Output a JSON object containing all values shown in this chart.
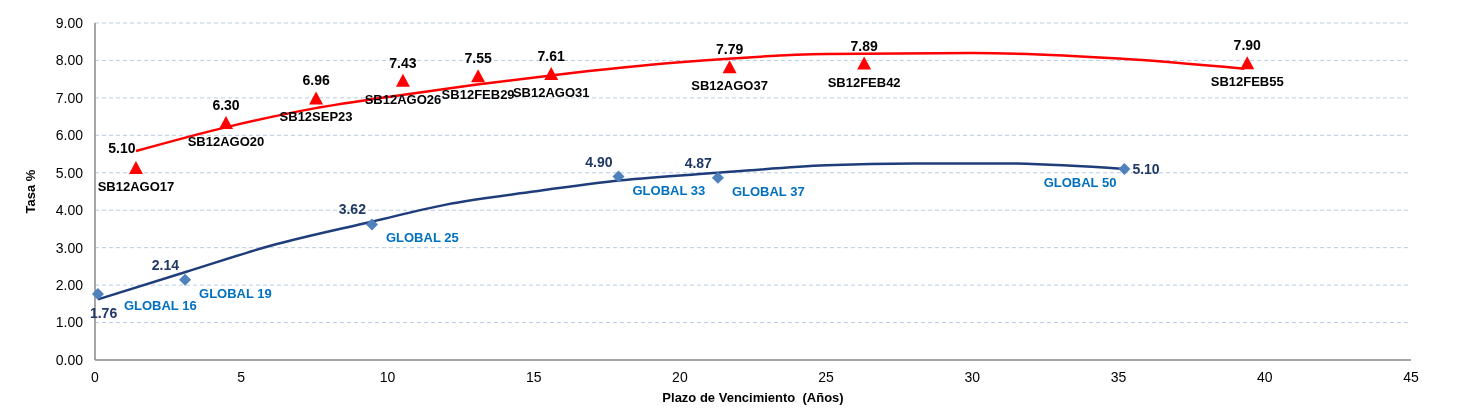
{
  "chart_data": {
    "type": "scatter",
    "xlabel": "Plazo de Vencimiento  (Años)",
    "ylabel": "Tasa %",
    "xlim": [
      0,
      45
    ],
    "xticks": [
      0,
      5,
      10,
      15,
      20,
      25,
      30,
      35,
      40,
      45
    ],
    "ylim": [
      0,
      9
    ],
    "yticks": [
      {
        "value": 0,
        "label": "0.00"
      },
      {
        "value": 1,
        "label": "1.00"
      },
      {
        "value": 2,
        "label": "2.00"
      },
      {
        "value": 3,
        "label": "3.00"
      },
      {
        "value": 4,
        "label": "4.00"
      },
      {
        "value": 5,
        "label": "5.00"
      },
      {
        "value": 6,
        "label": "6.00"
      },
      {
        "value": 7,
        "label": "7.00"
      },
      {
        "value": 8,
        "label": "8.00"
      },
      {
        "value": 9,
        "label": "9.00"
      }
    ],
    "grid": "y",
    "series": [
      {
        "type": "line",
        "color": "#ff0000",
        "marker": "none",
        "x": [
          1.4,
          4.5,
          7.5,
          10.5,
          13,
          15.6,
          20,
          25,
          30,
          35,
          39.3
        ],
        "values": [
          5.58,
          6.22,
          6.72,
          7.08,
          7.35,
          7.6,
          7.95,
          8.17,
          8.2,
          8.05,
          7.78
        ]
      },
      {
        "type": "line",
        "color": "#1f3d7a",
        "marker": "none",
        "x": [
          0.1,
          3.1,
          6,
          9.5,
          12,
          15,
          18,
          21.3,
          25,
          28,
          31,
          35.2
        ],
        "values": [
          1.62,
          2.35,
          3.05,
          3.7,
          4.15,
          4.5,
          4.8,
          5.0,
          5.2,
          5.25,
          5.25,
          5.1
        ]
      },
      {
        "color": "#ff0000",
        "marker": "triangle",
        "x": [
          1.4,
          4.48,
          7.56,
          10.53,
          13.1,
          15.6,
          21.7,
          26.3,
          39.4
        ],
        "values": [
          5.1,
          6.3,
          6.96,
          7.43,
          7.55,
          7.61,
          7.79,
          7.89,
          7.9
        ],
        "value_labels": [
          "5.10",
          "6.30",
          "6.96",
          "7.43",
          "7.55",
          "7.61",
          "7.79",
          "7.89",
          "7.90"
        ]
      },
      {
        "color": "#4f81bd",
        "marker": "diamond",
        "x": [
          0.1,
          3.08,
          9.47,
          17.9,
          21.3,
          35.2
        ],
        "values": [
          1.76,
          2.14,
          3.62,
          4.9,
          4.87,
          5.1
        ],
        "value_labels": [
          "1.76",
          "2.14",
          "3.62",
          "4.90",
          "4.87",
          "5.10"
        ]
      }
    ],
    "annotations": [
      {
        "text": "SB12AGO17",
        "x": 1.4,
        "y": 5.1
      },
      {
        "text": "SB12AGO20",
        "x": 4.48,
        "y": 6.3
      },
      {
        "text": "SB12SEP23",
        "x": 7.56,
        "y": 6.96
      },
      {
        "text": "SB12AGO26",
        "x": 10.53,
        "y": 7.43
      },
      {
        "text": "SB12FEB29",
        "x": 13.1,
        "y": 7.55
      },
      {
        "text": "SB12AGO31",
        "x": 15.6,
        "y": 7.61
      },
      {
        "text": "SB12AGO37",
        "x": 21.7,
        "y": 7.79
      },
      {
        "text": "SB12FEB42",
        "x": 26.3,
        "y": 7.89
      },
      {
        "text": "SB12FEB55",
        "x": 39.4,
        "y": 7.9
      },
      {
        "text": "GLOBAL 16",
        "x": 0.1,
        "y": 1.76
      },
      {
        "text": "GLOBAL 19",
        "x": 3.08,
        "y": 2.14
      },
      {
        "text": "GLOBAL 25",
        "x": 9.47,
        "y": 3.62
      },
      {
        "text": "GLOBAL 33",
        "x": 17.9,
        "y": 4.9
      },
      {
        "text": "GLOBAL 37",
        "x": 21.3,
        "y": 4.87
      },
      {
        "text": "GLOBAL 50",
        "x": 35.2,
        "y": 5.1
      }
    ]
  }
}
